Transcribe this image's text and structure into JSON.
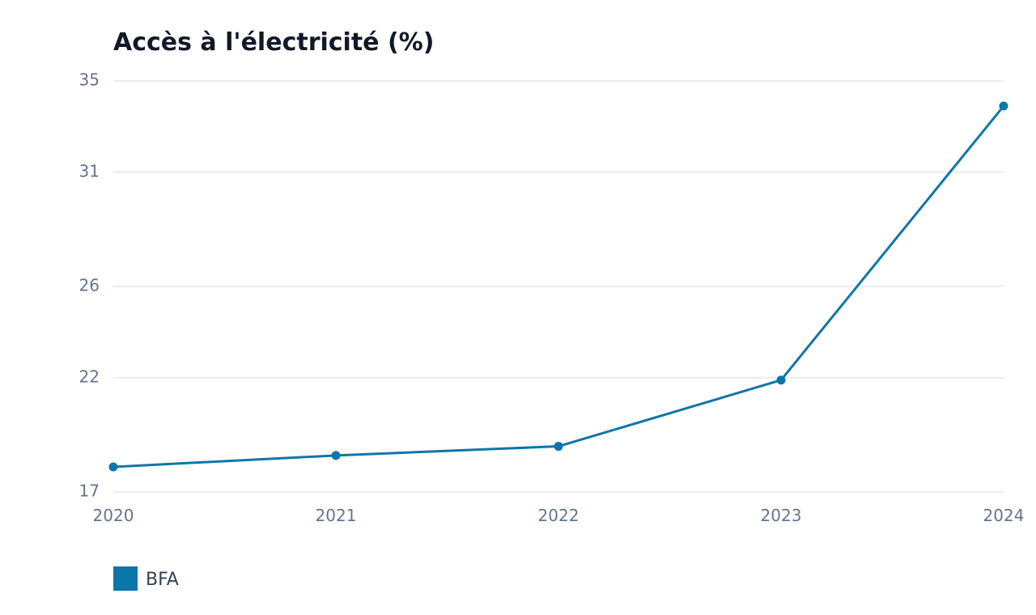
{
  "chart_data": {
    "type": "line",
    "title": "Accès à l'électricité (%)",
    "xlabel": "",
    "ylabel": "",
    "categories": [
      "2020",
      "2021",
      "2022",
      "2023",
      "2024"
    ],
    "series": [
      {
        "name": "BFA",
        "values": [
          18.1,
          18.6,
          19.0,
          21.9,
          33.9
        ]
      }
    ],
    "ylim": [
      17,
      35
    ],
    "yticks": [
      "17",
      "22",
      "26",
      "31",
      "35"
    ],
    "grid": true,
    "legend_position": "bottom-left",
    "colors": {
      "series": "#0f76a8",
      "grid": "#e5e7eb",
      "title": "#111827",
      "ticks": "#64748b",
      "legend_text": "#374151"
    }
  }
}
